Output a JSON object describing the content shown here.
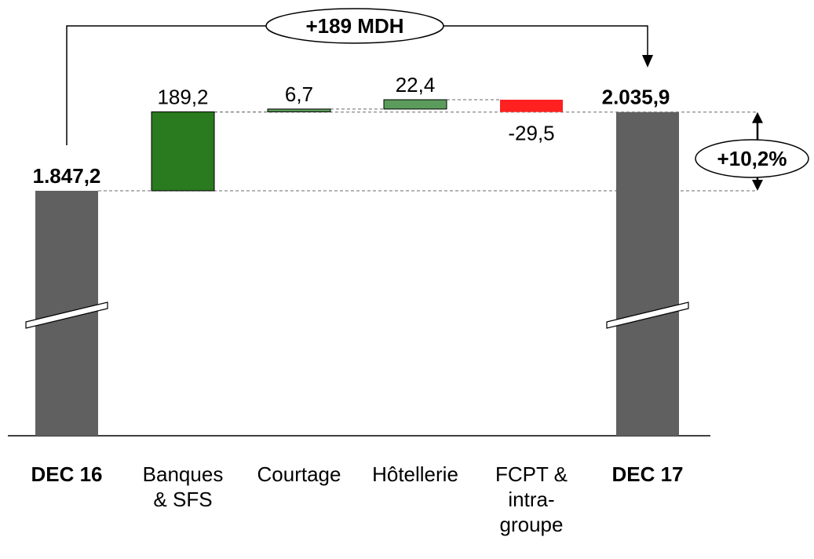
{
  "chart_data": {
    "type": "waterfall",
    "categories": [
      "DEC 16",
      "Banques & SFS",
      "Courtage",
      "Hôtellerie",
      "FCPT & intra-groupe",
      "DEC 17"
    ],
    "values": [
      1847.2,
      189.2,
      6.7,
      22.4,
      -29.5,
      2035.9
    ],
    "value_labels": [
      "1.847,2",
      "189,2",
      "6,7",
      "22,4",
      "-29,5",
      "2.035,9"
    ],
    "totals": [
      true,
      false,
      false,
      false,
      false,
      true
    ],
    "colors": [
      "#606060",
      "#2a7a1f",
      "#5b9b5b",
      "#5b9b5b",
      "#ff2020",
      "#606060"
    ],
    "annotations": [
      "+189 MDH",
      "+10,2%"
    ]
  }
}
